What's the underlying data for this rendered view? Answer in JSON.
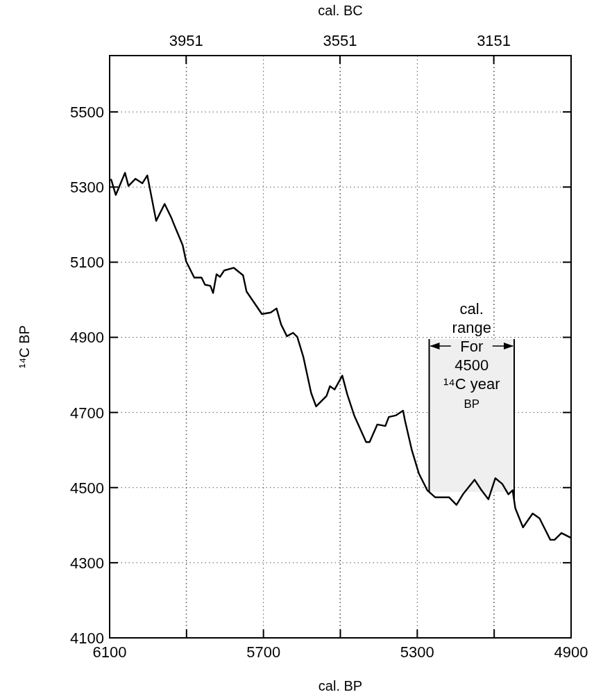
{
  "chart_data": {
    "type": "line",
    "xlabel": "cal. BP",
    "x2label": "cal. BC",
    "ylabel": "¹⁴C BP",
    "xlim": [
      6100,
      4900
    ],
    "xticks": [
      6100,
      {
        "value": 5900,
        "label": null
      },
      5700,
      {
        "value": 5500,
        "label": null
      },
      5300,
      {
        "value": 5100,
        "label": null
      },
      4900
    ],
    "x2lim": [
      4150,
      2950
    ],
    "x2ticks": [
      3951,
      3551,
      3151
    ],
    "ylim": [
      4100,
      5650
    ],
    "yticks": [
      4100,
      4300,
      4500,
      4700,
      4900,
      5100,
      5300,
      5500
    ],
    "grid": true,
    "marker": "none",
    "line_style": "solid",
    "bands": [
      {
        "axis": "x",
        "from": 5048,
        "to": 5269,
        "color": "#efefef",
        "label": "cal.\nrange\nFor\n4500\n¹⁴C year\nBP"
      }
    ],
    "series": [
      {
        "color": "#000000",
        "x": [
          6096,
          6084,
          6060,
          6051,
          6033,
          6015,
          6002,
          5979,
          5957,
          5939,
          5934,
          5910,
          5901,
          5880,
          5861,
          5852,
          5838,
          5831,
          5822,
          5813,
          5802,
          5777,
          5753,
          5744,
          5704,
          5681,
          5666,
          5654,
          5639,
          5623,
          5612,
          5596,
          5576,
          5563,
          5536,
          5527,
          5515,
          5495,
          5482,
          5464,
          5433,
          5424,
          5404,
          5383,
          5374,
          5356,
          5337,
          5332,
          5314,
          5296,
          5274,
          5253,
          5217,
          5198,
          5180,
          5151,
          5133,
          5115,
          5097,
          5079,
          5063,
          5052,
          5045,
          5025,
          5000,
          4982,
          4954,
          4943,
          4925,
          4900
        ],
        "values": [
          5320,
          5279,
          5338,
          5303,
          5322,
          5310,
          5331,
          5210,
          5255,
          5217,
          5204,
          5145,
          5102,
          5059,
          5059,
          5040,
          5037,
          5018,
          5068,
          5061,
          5078,
          5085,
          5065,
          5022,
          4962,
          4966,
          4977,
          4934,
          4903,
          4912,
          4901,
          4847,
          4752,
          4716,
          4744,
          4770,
          4761,
          4798,
          4748,
          4692,
          4621,
          4621,
          4668,
          4664,
          4688,
          4692,
          4705,
          4679,
          4599,
          4538,
          4493,
          4474,
          4474,
          4454,
          4484,
          4521,
          4493,
          4469,
          4525,
          4510,
          4482,
          4493,
          4445,
          4394,
          4431,
          4418,
          4361,
          4361,
          4379,
          4366
        ]
      }
    ]
  }
}
